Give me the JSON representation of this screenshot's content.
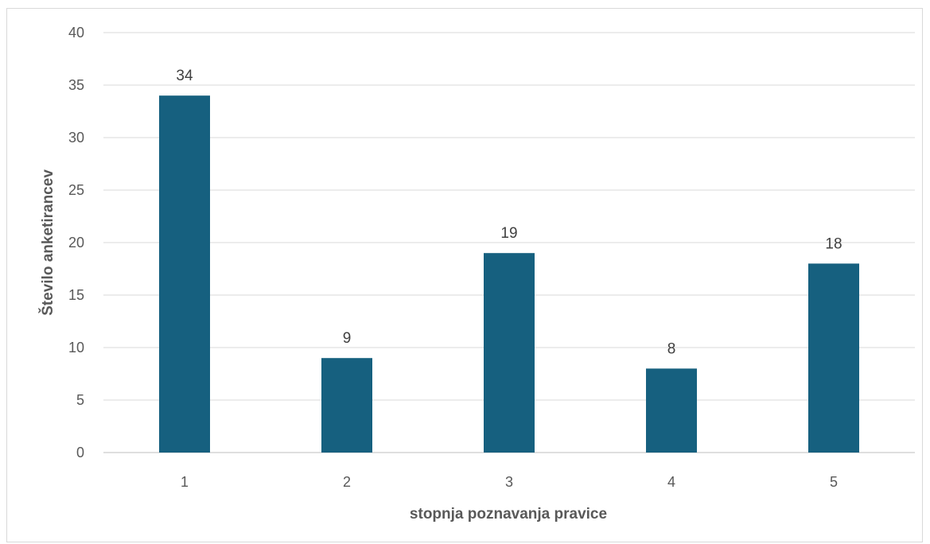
{
  "chart_data": {
    "type": "bar",
    "categories": [
      "1",
      "2",
      "3",
      "4",
      "5"
    ],
    "values": [
      34,
      9,
      19,
      8,
      18
    ],
    "data_labels": [
      "34",
      "9",
      "19",
      "8",
      "18"
    ],
    "title": "",
    "xlabel": "stopnja poznavanja pravice",
    "ylabel": "Število anketirancev",
    "ylim": [
      0,
      40
    ],
    "yticks": [
      "0",
      "5",
      "10",
      "15",
      "20",
      "25",
      "30",
      "35",
      "40"
    ],
    "grid": true,
    "legend": "none",
    "bar_color": "#16607f"
  }
}
